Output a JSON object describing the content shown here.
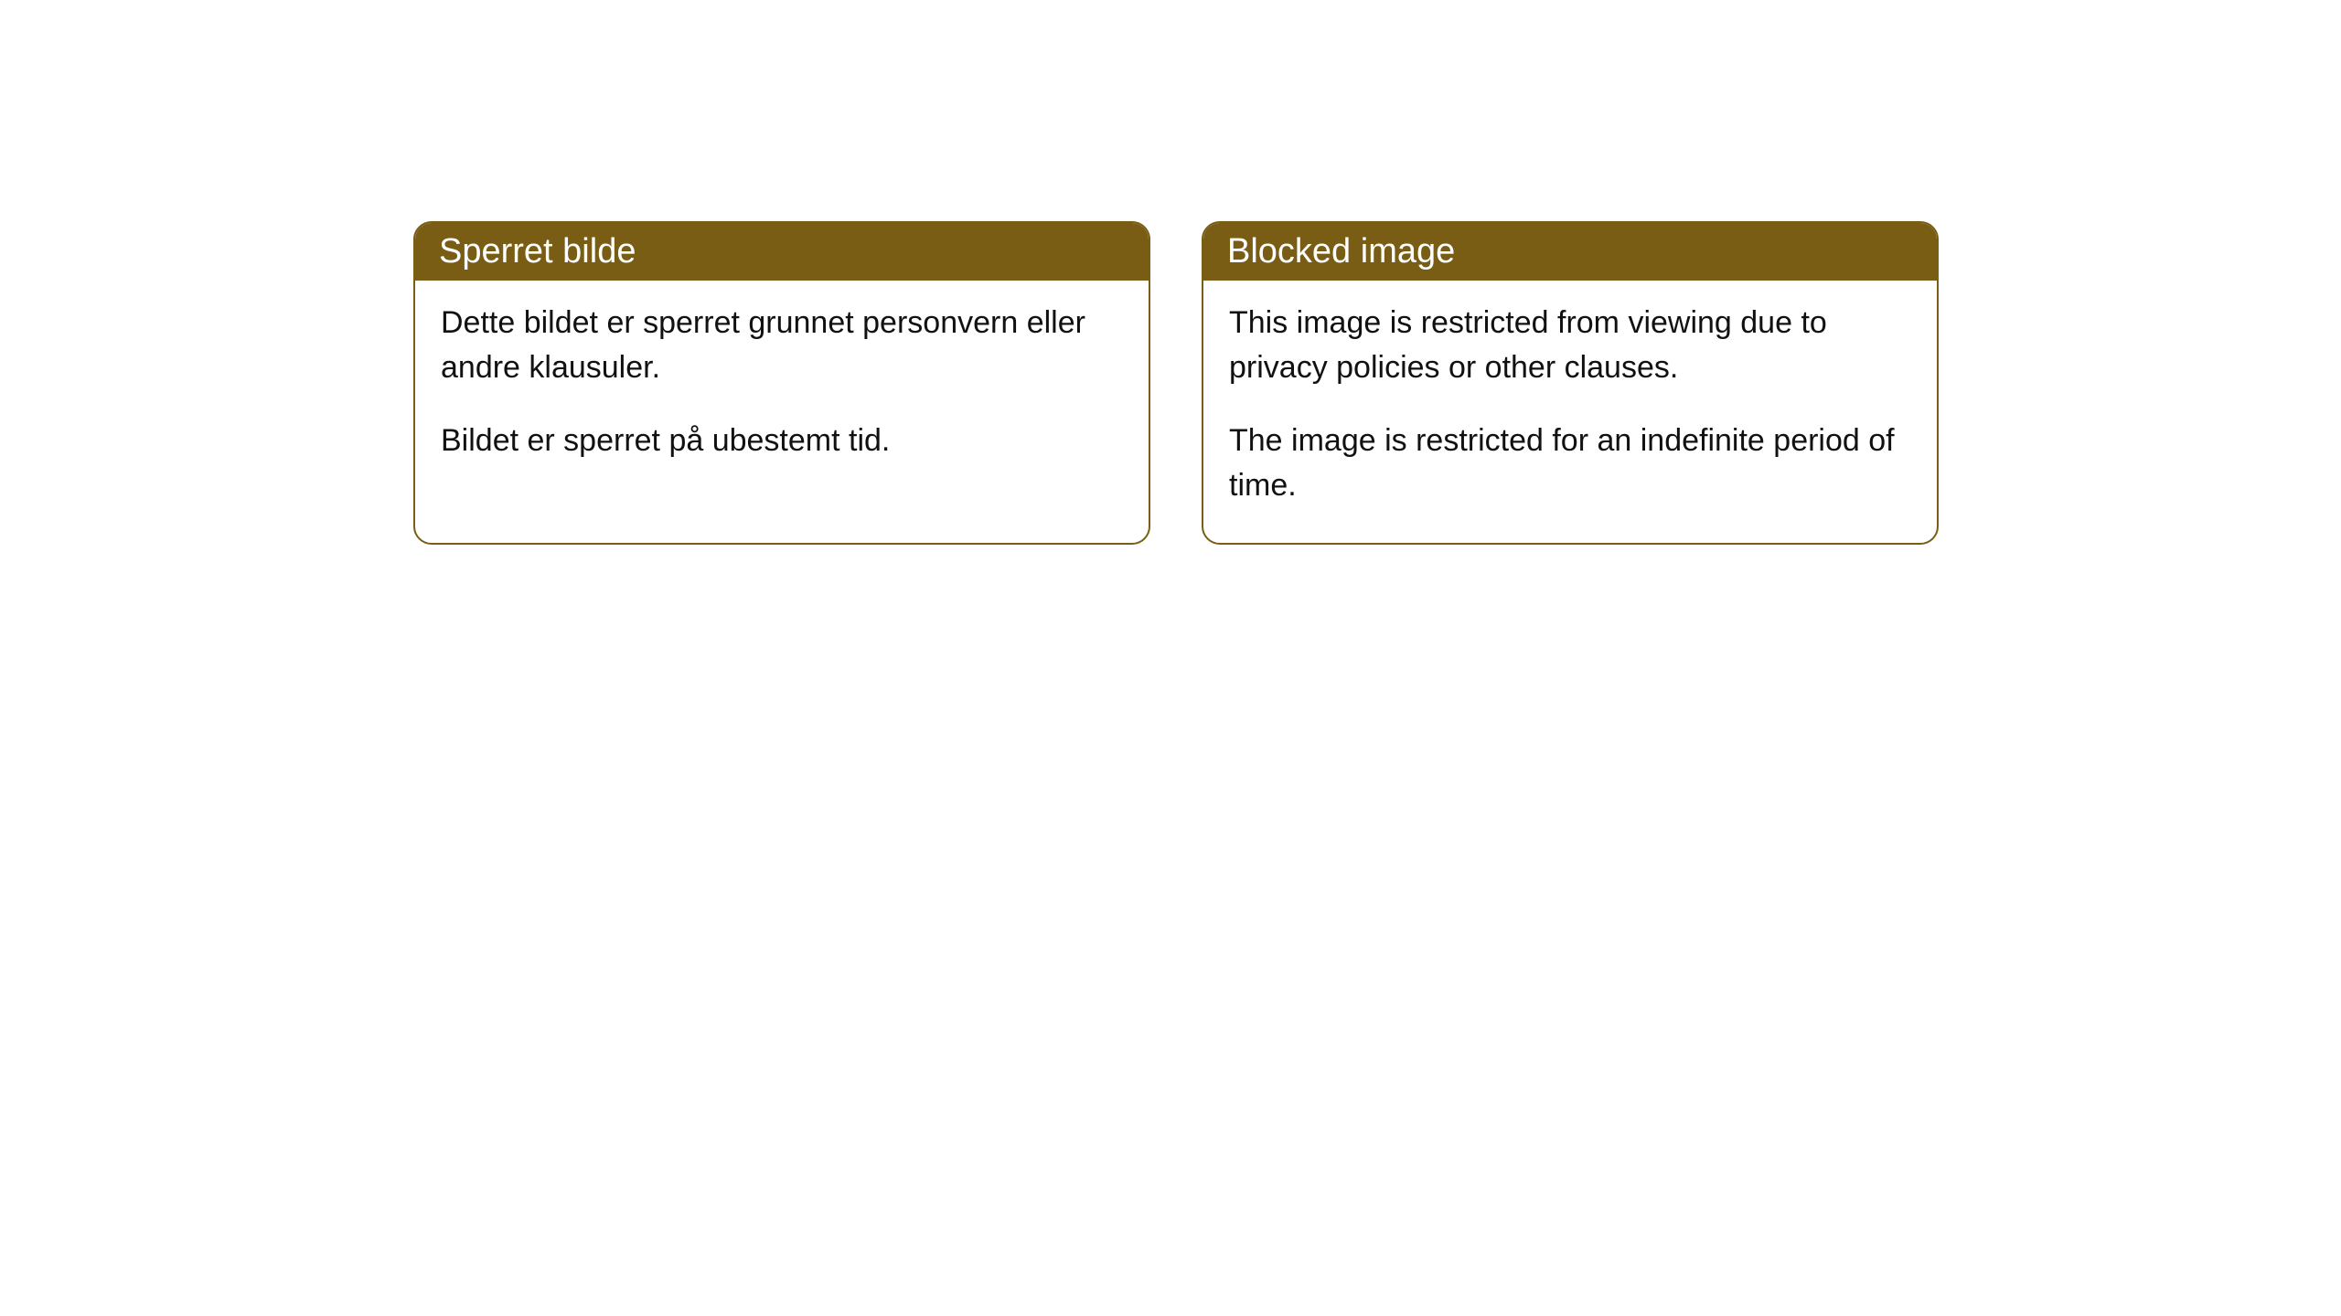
{
  "cards": [
    {
      "title": "Sperret bilde",
      "paragraph1": "Dette bildet er sperret grunnet personvern eller andre klausuler.",
      "paragraph2": "Bildet er sperret på ubestemt tid."
    },
    {
      "title": "Blocked image",
      "paragraph1": "This image is restricted from viewing due to privacy policies or other clauses.",
      "paragraph2": "The image is restricted for an indefinite period of time."
    }
  ],
  "styling": {
    "header_background": "#7a5d14",
    "header_text_color": "#ffffff",
    "border_color": "#7a5d14",
    "body_background": "#ffffff",
    "body_text_color": "#111111",
    "border_radius": 20,
    "title_fontsize": 38,
    "body_fontsize": 34
  }
}
